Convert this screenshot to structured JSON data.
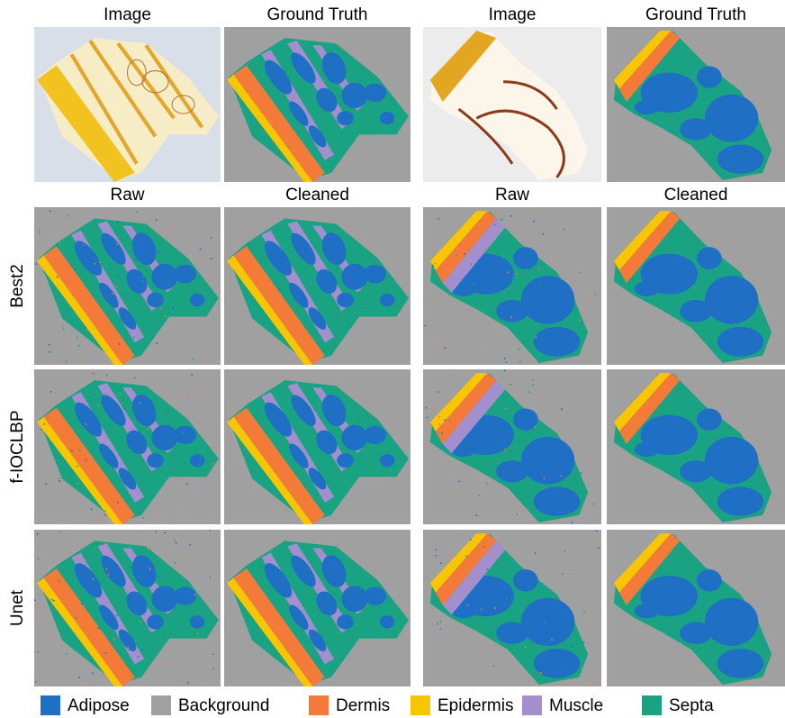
{
  "top_headers": [
    "Image",
    "Ground Truth",
    "Image",
    "Ground Truth"
  ],
  "sub_headers": [
    "Raw",
    "Cleaned",
    "Raw",
    "Cleaned"
  ],
  "row_labels": [
    "Best2",
    "f-IOCLBP",
    "Unet"
  ],
  "legend": [
    {
      "label": "Adipose",
      "color": "#1f6fc5"
    },
    {
      "label": "Background",
      "color": "#a0a0a0"
    },
    {
      "label": "Dermis",
      "color": "#f47a3a"
    },
    {
      "label": "Epidermis",
      "color": "#f7c600"
    },
    {
      "label": "Muscle",
      "color": "#a38fcd"
    },
    {
      "label": "Septa",
      "color": "#1aa383"
    }
  ]
}
